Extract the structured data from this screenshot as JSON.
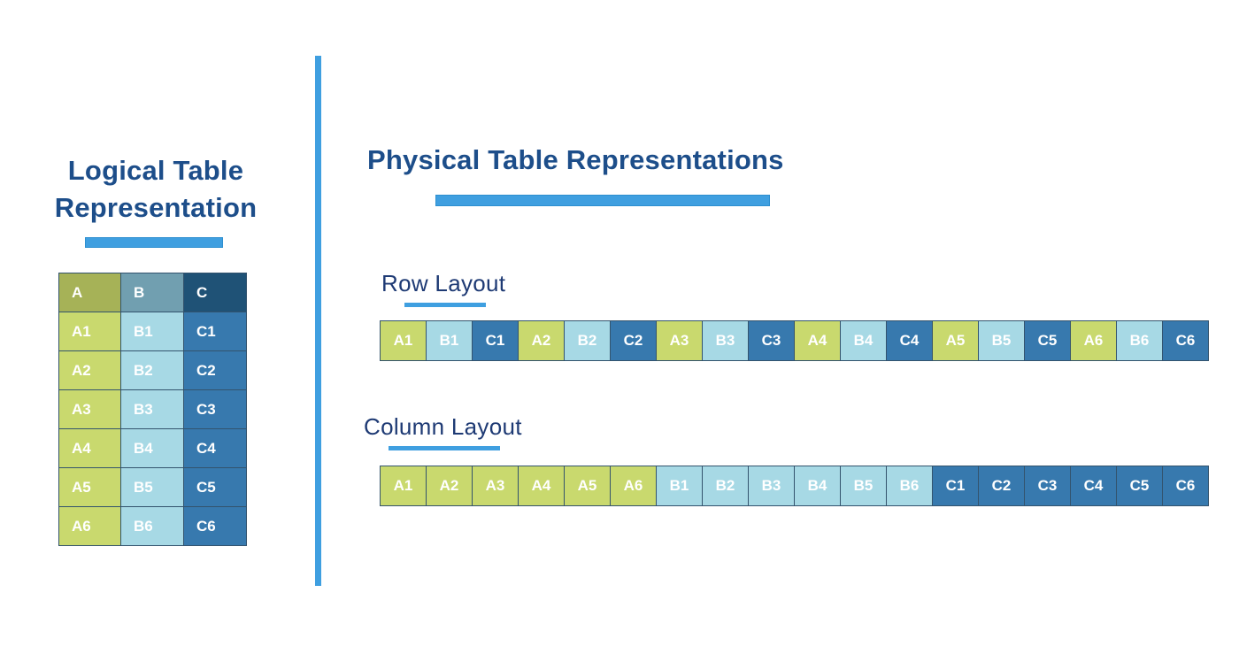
{
  "colors": {
    "accent": "#3f9fe0",
    "title_text": "#1d4e8a",
    "label_text": "#1e3a74",
    "grid_line": "#33536d",
    "cell_text": "#ffffff",
    "header": {
      "A": "#a6b257",
      "B": "#719fb0",
      "C": "#1f5276"
    },
    "cell": {
      "A": "#c9d96e",
      "B": "#a7d9e5",
      "C": "#3779ae"
    }
  },
  "left": {
    "title": "Logical Table Representation",
    "table": {
      "headers": [
        "A",
        "B",
        "C"
      ],
      "rows": [
        [
          "A1",
          "B1",
          "C1"
        ],
        [
          "A2",
          "B2",
          "C2"
        ],
        [
          "A3",
          "B3",
          "C3"
        ],
        [
          "A4",
          "B4",
          "C4"
        ],
        [
          "A5",
          "B5",
          "C5"
        ],
        [
          "A6",
          "B6",
          "C6"
        ]
      ]
    }
  },
  "right": {
    "title": "Physical Table Representations",
    "row_layout": {
      "label": "Row Layout",
      "cells": [
        "A1",
        "B1",
        "C1",
        "A2",
        "B2",
        "C2",
        "A3",
        "B3",
        "C3",
        "A4",
        "B4",
        "C4",
        "A5",
        "B5",
        "C5",
        "A6",
        "B6",
        "C6"
      ]
    },
    "column_layout": {
      "label": "Column Layout",
      "cells": [
        "A1",
        "A2",
        "A3",
        "A4",
        "A5",
        "A6",
        "B1",
        "B2",
        "B3",
        "B4",
        "B5",
        "B6",
        "C1",
        "C2",
        "C3",
        "C4",
        "C5",
        "C6"
      ]
    }
  }
}
